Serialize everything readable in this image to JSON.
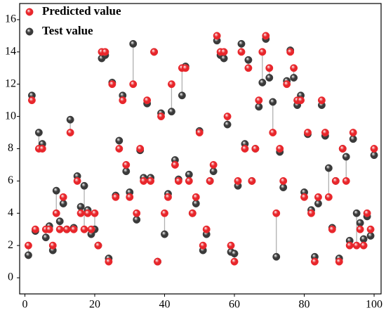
{
  "chart_data": {
    "type": "scatter",
    "x": [
      1,
      2,
      3,
      4,
      5,
      6,
      7,
      8,
      9,
      10,
      11,
      12,
      13,
      14,
      15,
      16,
      17,
      18,
      19,
      20,
      21,
      22,
      23,
      24,
      25,
      26,
      27,
      28,
      29,
      30,
      31,
      32,
      33,
      34,
      35,
      36,
      37,
      38,
      39,
      40,
      41,
      42,
      43,
      44,
      45,
      46,
      47,
      48,
      49,
      50,
      51,
      52,
      53,
      54,
      55,
      56,
      57,
      58,
      59,
      60,
      61,
      62,
      63,
      64,
      65,
      66,
      67,
      68,
      69,
      70,
      71,
      72,
      73,
      74,
      75,
      76,
      77,
      78,
      79,
      80,
      81,
      82,
      83,
      84,
      85,
      86,
      87,
      88,
      89,
      90,
      91,
      92,
      93,
      94,
      95,
      96,
      97,
      98,
      99,
      100
    ],
    "series": [
      {
        "name": "Predicted value",
        "color": "#e8262b",
        "values": [
          2,
          11,
          3,
          8,
          8,
          3,
          3,
          2,
          4,
          3,
          5,
          3,
          9,
          3,
          6,
          4,
          3,
          4,
          3,
          4,
          2,
          14,
          14,
          1,
          12,
          5,
          8,
          11,
          7,
          5,
          12,
          4,
          8,
          6,
          11,
          6,
          14,
          1,
          10,
          4,
          5,
          12,
          7,
          6,
          13,
          13,
          6,
          4,
          5,
          9,
          2,
          3,
          6,
          7,
          15,
          14,
          14,
          10,
          2,
          1,
          6,
          14,
          8,
          13,
          6,
          8,
          11,
          14,
          15,
          13,
          9,
          4,
          8,
          6,
          12,
          14,
          13,
          11,
          11,
          5,
          9,
          4,
          1,
          5,
          11,
          9,
          5,
          3,
          6,
          1,
          8,
          6,
          2,
          9,
          2,
          3,
          2,
          4,
          3,
          8
        ]
      },
      {
        "name": "Test value",
        "color": "#3a3a3a",
        "values": [
          1.4,
          11.3,
          2.9,
          9.0,
          8.3,
          2.5,
          3.2,
          1.7,
          5.4,
          3.5,
          4.6,
          3.0,
          9.8,
          3.1,
          6.3,
          4.4,
          5.7,
          4.2,
          2.7,
          3.0,
          2.0,
          13.6,
          13.8,
          1.2,
          12.1,
          5.1,
          8.5,
          11.3,
          6.6,
          5.3,
          14.5,
          3.6,
          7.9,
          6.2,
          10.8,
          6.2,
          14.0,
          1.0,
          10.2,
          2.7,
          5.2,
          10.3,
          7.3,
          6.1,
          11.3,
          13.1,
          6.4,
          4.0,
          4.6,
          9.1,
          1.7,
          2.7,
          6.0,
          6.6,
          14.7,
          13.8,
          13.6,
          9.5,
          1.6,
          1.5,
          5.7,
          14.5,
          8.3,
          13.5,
          6.0,
          8.0,
          10.6,
          12.1,
          14.8,
          12.4,
          10.9,
          1.3,
          7.8,
          5.6,
          12.2,
          14.1,
          12.4,
          10.7,
          11.3,
          5.3,
          8.9,
          4.2,
          1.3,
          4.6,
          10.7,
          8.8,
          6.8,
          3.1,
          6.0,
          1.2,
          8.0,
          7.5,
          2.3,
          8.6,
          4.0,
          3.4,
          2.4,
          3.8,
          2.6,
          7.6
        ]
      }
    ],
    "xlim": [
      -1.5,
      102
    ],
    "ylim": [
      -1,
      17
    ],
    "xticks": [
      0,
      20,
      40,
      60,
      80,
      100
    ],
    "yticks": [
      0,
      2,
      4,
      6,
      8,
      10,
      12,
      14,
      16
    ],
    "legend": "upper left"
  }
}
